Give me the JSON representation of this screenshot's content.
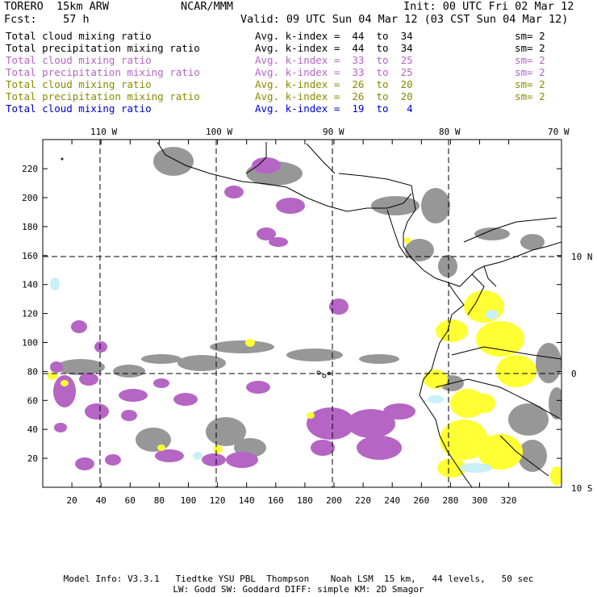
{
  "header": {
    "model": "TORERO  15km ARW",
    "center": "NCAR/MMM",
    "init": "Init: 00 UTC Fri 02 Mar 12",
    "fcst": "Fcst:    57 h",
    "valid": "Valid: 09 UTC Sun 04 Mar 12 (03 CST Sun 04 Mar 12)"
  },
  "legend": [
    {
      "field": "Total cloud mixing ratio",
      "idx": "Avg. k-index =  44  to  34",
      "sm": "sm= 2",
      "color": "#000000"
    },
    {
      "field": "Total precipitation mixing ratio",
      "idx": "Avg. k-index =  44  to  34",
      "sm": "sm= 2",
      "color": "#000000"
    },
    {
      "field": "Total cloud mixing ratio",
      "idx": "Avg. k-index =  33  to  25",
      "sm": "sm= 2",
      "color": "#b565c4"
    },
    {
      "field": "Total precipitation mixing ratio",
      "idx": "Avg. k-index =  33  to  25",
      "sm": "sm= 2",
      "color": "#b565c4"
    },
    {
      "field": "Total cloud mixing ratio",
      "idx": "Avg. k-index =  26  to  20",
      "sm": "sm= 2",
      "color": "#8a8a00"
    },
    {
      "field": "Total precipitation mixing ratio",
      "idx": "Avg. k-index =  26  to  20",
      "sm": "sm= 2",
      "color": "#8a8a00"
    },
    {
      "field": "Total cloud mixing ratio",
      "idx": "Avg. k-index =  19  to   4",
      "sm": "",
      "color": "#0000cc"
    }
  ],
  "axes": {
    "lon_labels": [
      "110 W",
      "100 W",
      "90 W",
      "80 W",
      "70 W"
    ],
    "lat_labels": [
      "10 N",
      "0",
      "10 S"
    ],
    "y_ticks": [
      20,
      40,
      60,
      80,
      100,
      120,
      140,
      160,
      180,
      200,
      220
    ],
    "x_ticks": [
      20,
      40,
      60,
      80,
      100,
      120,
      140,
      160,
      180,
      200,
      220,
      240,
      260,
      280,
      300,
      320
    ]
  },
  "colors": {
    "gray": "#8c8c8c",
    "purple": "#b565c4",
    "yellow": "#ffff33",
    "cyan": "#c8f0fa"
  },
  "footer": {
    "line1": "Model Info: V3.3.1   Tiedtke YSU PBL  Thompson    Noah LSM  15 km,   44 levels,   50 sec",
    "line2": "LW: Godd SW: Goddard DIFF: simple KM: 2D Smagor"
  }
}
